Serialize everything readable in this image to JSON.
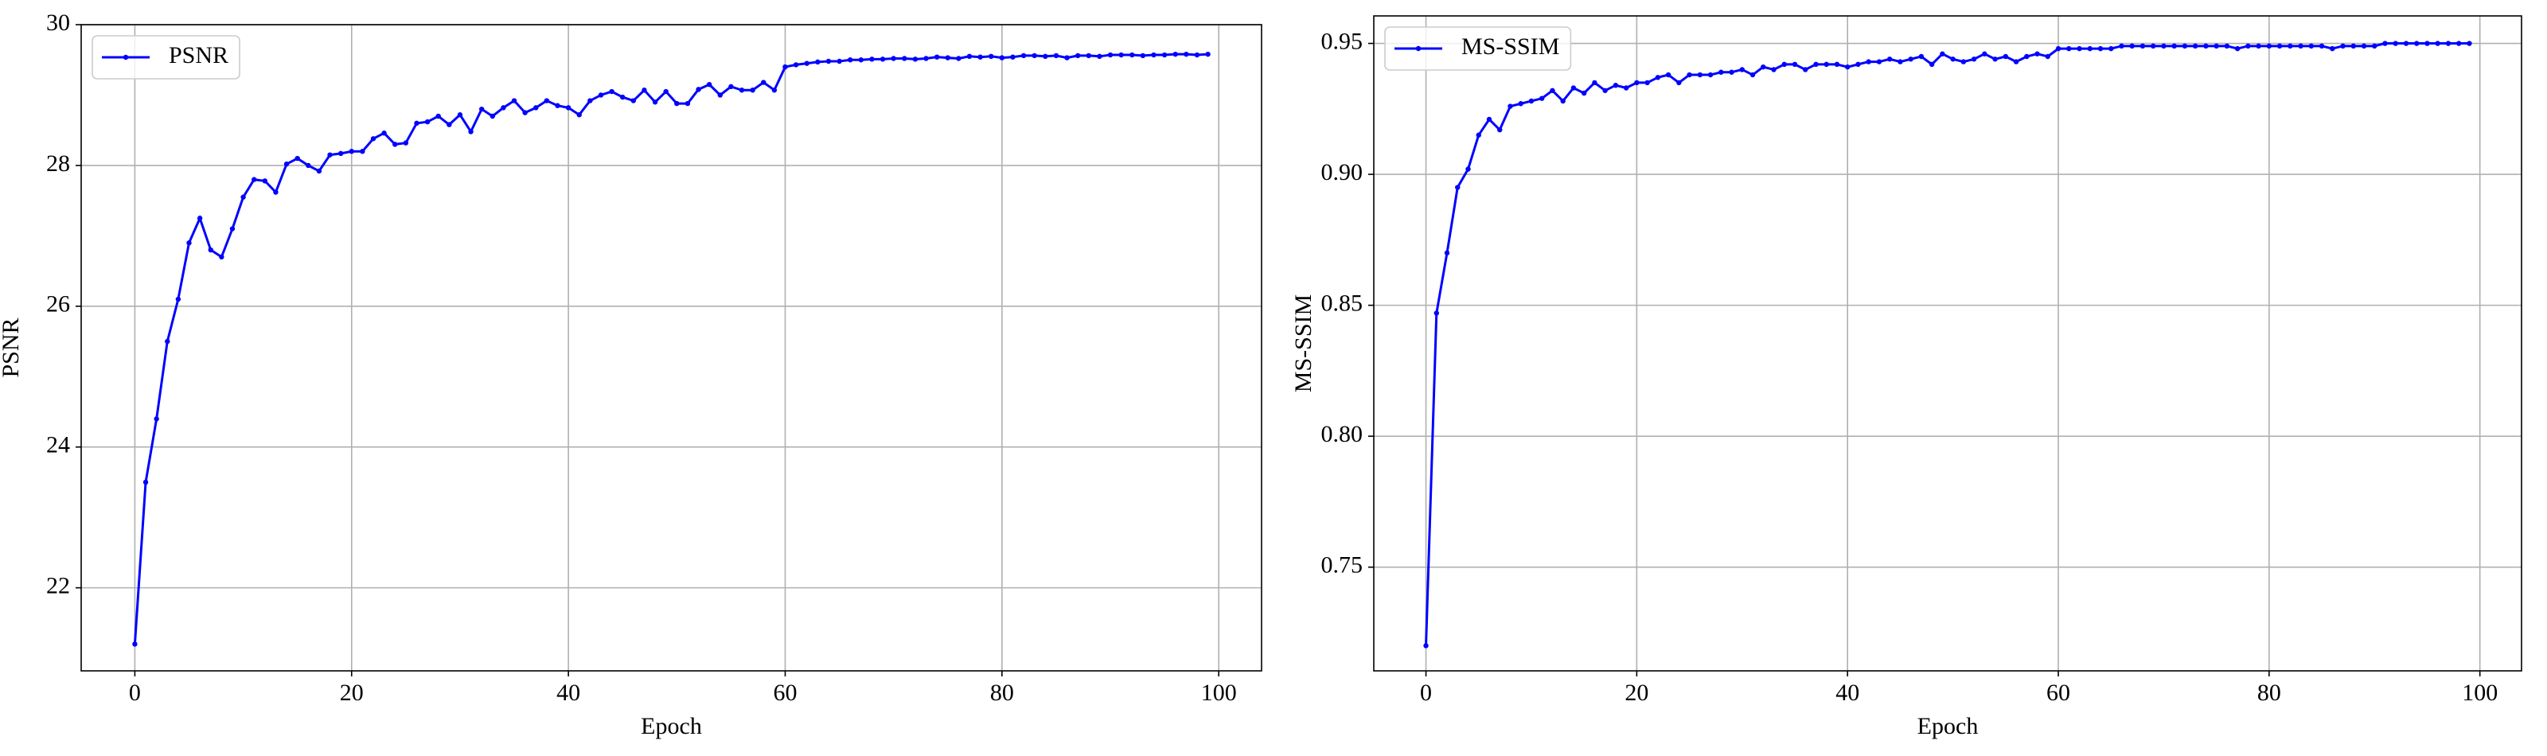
{
  "chart_data": [
    {
      "type": "line",
      "xlabel": "Epoch",
      "ylabel": "PSNR",
      "x": [
        0,
        1,
        2,
        3,
        4,
        5,
        6,
        7,
        8,
        9,
        10,
        11,
        12,
        13,
        14,
        15,
        16,
        17,
        18,
        19,
        20,
        21,
        22,
        23,
        24,
        25,
        26,
        27,
        28,
        29,
        30,
        31,
        32,
        33,
        34,
        35,
        36,
        37,
        38,
        39,
        40,
        41,
        42,
        43,
        44,
        45,
        46,
        47,
        48,
        49,
        50,
        51,
        52,
        53,
        54,
        55,
        56,
        57,
        58,
        59,
        60,
        61,
        62,
        63,
        64,
        65,
        66,
        67,
        68,
        69,
        70,
        71,
        72,
        73,
        74,
        75,
        76,
        77,
        78,
        79,
        80,
        81,
        82,
        83,
        84,
        85,
        86,
        87,
        88,
        89,
        90,
        91,
        92,
        93,
        94,
        95,
        96,
        97,
        98,
        99
      ],
      "series": [
        {
          "name": "PSNR",
          "color": "#0000ff",
          "values": [
            21.2,
            23.5,
            24.4,
            25.5,
            26.1,
            26.9,
            27.25,
            26.8,
            26.7,
            27.1,
            27.55,
            27.8,
            27.78,
            27.62,
            28.02,
            28.1,
            28.0,
            27.92,
            28.15,
            28.17,
            28.2,
            28.2,
            28.38,
            28.46,
            28.3,
            28.32,
            28.6,
            28.62,
            28.7,
            28.58,
            28.72,
            28.48,
            28.8,
            28.7,
            28.82,
            28.92,
            28.75,
            28.82,
            28.92,
            28.85,
            28.82,
            28.72,
            28.92,
            29.0,
            29.05,
            28.97,
            28.92,
            29.07,
            28.9,
            29.05,
            28.88,
            28.88,
            29.08,
            29.15,
            29.0,
            29.12,
            29.07,
            29.07,
            29.18,
            29.07,
            29.4,
            29.43,
            29.45,
            29.47,
            29.48,
            29.48,
            29.5,
            29.5,
            29.51,
            29.51,
            29.52,
            29.52,
            29.51,
            29.52,
            29.54,
            29.53,
            29.52,
            29.55,
            29.54,
            29.55,
            29.53,
            29.54,
            29.56,
            29.56,
            29.55,
            29.56,
            29.53,
            29.56,
            29.56,
            29.55,
            29.57,
            29.57,
            29.57,
            29.56,
            29.57,
            29.57,
            29.58,
            29.58,
            29.57,
            29.58
          ]
        }
      ],
      "xlim": [
        -4.95,
        103.95
      ],
      "ylim": [
        20.82,
        30
      ],
      "xticks": [
        0,
        20,
        40,
        60,
        80,
        100
      ],
      "yticks": [
        22,
        24,
        26,
        28,
        30
      ],
      "grid": true,
      "legend": "upper left"
    },
    {
      "type": "line",
      "xlabel": "Epoch",
      "ylabel": "MS-SSIM",
      "x": [
        0,
        1,
        2,
        3,
        4,
        5,
        6,
        7,
        8,
        9,
        10,
        11,
        12,
        13,
        14,
        15,
        16,
        17,
        18,
        19,
        20,
        21,
        22,
        23,
        24,
        25,
        26,
        27,
        28,
        29,
        30,
        31,
        32,
        33,
        34,
        35,
        36,
        37,
        38,
        39,
        40,
        41,
        42,
        43,
        44,
        45,
        46,
        47,
        48,
        49,
        50,
        51,
        52,
        53,
        54,
        55,
        56,
        57,
        58,
        59,
        60,
        61,
        62,
        63,
        64,
        65,
        66,
        67,
        68,
        69,
        70,
        71,
        72,
        73,
        74,
        75,
        76,
        77,
        78,
        79,
        80,
        81,
        82,
        83,
        84,
        85,
        86,
        87,
        88,
        89,
        90,
        91,
        92,
        93,
        94,
        95,
        96,
        97,
        98,
        99
      ],
      "series": [
        {
          "name": "MS-SSIM",
          "color": "#0000ff",
          "values": [
            0.72,
            0.847,
            0.87,
            0.895,
            0.902,
            0.915,
            0.921,
            0.917,
            0.926,
            0.927,
            0.928,
            0.929,
            0.932,
            0.928,
            0.933,
            0.931,
            0.935,
            0.932,
            0.934,
            0.933,
            0.935,
            0.935,
            0.937,
            0.938,
            0.935,
            0.938,
            0.938,
            0.938,
            0.939,
            0.939,
            0.94,
            0.938,
            0.941,
            0.94,
            0.942,
            0.942,
            0.94,
            0.942,
            0.942,
            0.942,
            0.941,
            0.942,
            0.943,
            0.943,
            0.944,
            0.943,
            0.944,
            0.945,
            0.942,
            0.946,
            0.944,
            0.943,
            0.944,
            0.946,
            0.944,
            0.945,
            0.943,
            0.945,
            0.946,
            0.945,
            0.948,
            0.948,
            0.948,
            0.948,
            0.948,
            0.948,
            0.949,
            0.949,
            0.949,
            0.949,
            0.949,
            0.949,
            0.949,
            0.949,
            0.949,
            0.949,
            0.949,
            0.948,
            0.949,
            0.949,
            0.949,
            0.949,
            0.949,
            0.949,
            0.949,
            0.949,
            0.948,
            0.949,
            0.949,
            0.949,
            0.949,
            0.95,
            0.95,
            0.95,
            0.95,
            0.95,
            0.95,
            0.95,
            0.95,
            0.95
          ]
        }
      ],
      "xlim": [
        -4.95,
        103.95
      ],
      "ylim": [
        0.7104,
        0.9605
      ],
      "xticks": [
        0,
        20,
        40,
        60,
        80,
        100
      ],
      "yticks": [
        0.75,
        {
          "value": 0.8,
          "label": "0.80"
        },
        0.85,
        {
          "value": 0.9,
          "label": "0.90"
        },
        0.95
      ],
      "grid": true,
      "legend": "upper left"
    }
  ]
}
